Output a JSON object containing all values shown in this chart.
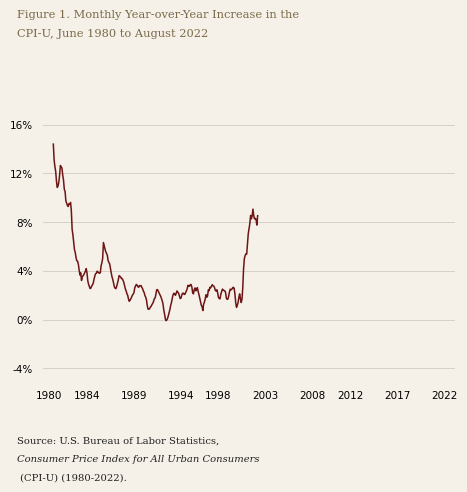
{
  "title_line1": "Figure 1. Monthly Year-over-Year Increase in the",
  "title_line2": "CPI-U, June 1980 to August 2022",
  "source_italic": "Consumer Price\nIndex for All Urban Consumers",
  "source_pre": "Source: U.S. Bureau of Labor Statistics, ",
  "source_post": " (CPI-U) (1980-2022).",
  "line_color": "#6e1515",
  "background_color": "#f5f0e8",
  "title_color": "#7a6a4a",
  "source_color": "#222222",
  "ylim": [
    -5,
    17
  ],
  "yticks": [
    -4,
    0,
    4,
    8,
    12,
    16
  ],
  "xticks": [
    1980,
    1984,
    1989,
    1994,
    1998,
    2003,
    2008,
    2012,
    2017,
    2022
  ],
  "grid_color": "#d0ccc0",
  "line_width": 1.1,
  "start_year": 1980,
  "start_month": 6,
  "cpi_data": [
    14.39,
    13.09,
    12.55,
    12.15,
    11.35,
    10.84,
    10.96,
    11.28,
    11.83,
    12.64,
    12.52,
    12.43,
    11.84,
    11.44,
    10.69,
    10.51,
    9.74,
    9.55,
    9.36,
    9.28,
    9.51,
    9.45,
    9.61,
    8.91,
    7.41,
    6.95,
    6.37,
    5.73,
    5.51,
    5.08,
    4.82,
    4.79,
    4.52,
    4.05,
    3.65,
    3.83,
    3.21,
    3.52,
    3.59,
    3.69,
    3.84,
    3.97,
    4.18,
    3.83,
    3.19,
    2.9,
    2.71,
    2.54,
    2.59,
    2.75,
    2.85,
    2.99,
    3.32,
    3.57,
    3.77,
    3.8,
    3.97,
    3.91,
    3.83,
    3.8,
    3.85,
    4.41,
    4.66,
    5.01,
    6.32,
    6.04,
    5.79,
    5.55,
    5.43,
    5.26,
    4.82,
    4.68,
    4.56,
    4.18,
    3.81,
    3.49,
    3.28,
    2.99,
    2.68,
    2.57,
    2.54,
    2.74,
    2.99,
    3.27,
    3.61,
    3.55,
    3.49,
    3.37,
    3.36,
    3.22,
    3.05,
    2.79,
    2.52,
    2.35,
    2.12,
    1.99,
    1.69,
    1.5,
    1.59,
    1.7,
    1.86,
    2.0,
    2.09,
    2.22,
    2.6,
    2.76,
    2.88,
    2.83,
    2.7,
    2.65,
    2.78,
    2.78,
    2.79,
    2.65,
    2.54,
    2.34,
    2.22,
    1.97,
    1.84,
    1.61,
    1.14,
    0.86,
    0.84,
    0.9,
    1.03,
    1.09,
    1.24,
    1.33,
    1.49,
    1.71,
    1.77,
    2.07,
    2.44,
    2.46,
    2.34,
    2.19,
    2.06,
    1.93,
    1.76,
    1.56,
    1.31,
    0.83,
    0.49,
    0.07,
    -0.09,
    -0.03,
    0.12,
    0.34,
    0.6,
    0.86,
    1.19,
    1.43,
    1.76,
    2.04,
    2.16,
    2.1,
    1.99,
    2.16,
    2.35,
    2.24,
    2.17,
    1.96,
    1.73,
    1.75,
    2.0,
    2.15,
    2.17,
    2.07,
    2.07,
    2.21,
    2.36,
    2.53,
    2.81,
    2.73,
    2.74,
    2.87,
    2.87,
    2.65,
    2.2,
    2.11,
    2.46,
    2.6,
    2.36,
    2.45,
    2.62,
    2.3,
    2.06,
    1.78,
    1.46,
    1.18,
    1.06,
    0.74,
    1.27,
    1.44,
    1.68,
    2.04,
    1.83,
    1.93,
    2.44,
    2.37,
    2.65,
    2.61,
    2.72,
    2.86,
    2.78,
    2.75,
    2.61,
    2.38,
    2.35,
    2.45,
    2.16,
    1.81,
    1.72,
    1.71,
    2.09,
    2.29,
    2.5,
    2.43,
    2.38,
    2.37,
    2.23,
    1.77,
    1.66,
    1.68,
    1.92,
    2.27,
    2.5,
    2.44,
    2.49,
    2.6,
    2.65,
    2.56,
    2.07,
    1.37,
    1.0,
    1.17,
    1.4,
    1.82,
    2.11,
    1.7,
    1.4,
    1.68,
    2.62,
    4.16,
    4.99,
    5.25,
    5.39,
    5.37,
    6.22,
    7.04,
    7.48,
    7.87,
    8.54,
    8.26,
    8.52,
    9.06,
    8.52,
    8.26,
    8.3,
    8.2,
    7.75,
    8.52
  ]
}
